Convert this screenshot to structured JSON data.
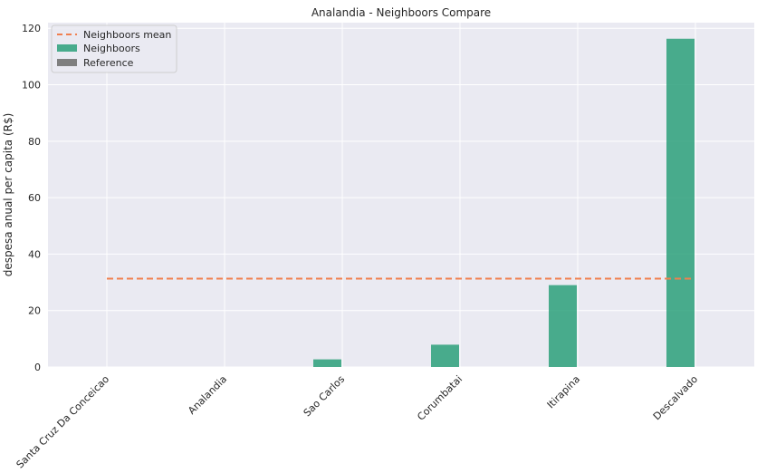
{
  "chart_data": {
    "type": "bar",
    "title": "Analandia - Neighboors Compare",
    "xlabel": "",
    "ylabel": "despesa anual per capita (R$)",
    "categories": [
      "Santa Cruz Da Conceicao",
      "Analandia",
      "Sao Carlos",
      "Corumbatai",
      "Itirapina",
      "Descalvado"
    ],
    "series": [
      {
        "name": "Neighboors",
        "values": [
          0,
          0,
          2.7,
          7.9,
          29.0,
          116.3
        ],
        "color": "#2ca07a"
      },
      {
        "name": "Reference",
        "values": [
          0,
          0,
          0,
          0,
          0,
          0
        ],
        "color": "#7f7f7f"
      }
    ],
    "mean_line": {
      "name": "Neighboors mean",
      "value": 31.3,
      "color": "#f08050"
    },
    "ylim": [
      0,
      122
    ],
    "yticks": [
      0,
      20,
      40,
      60,
      80,
      100,
      120
    ],
    "grid": true,
    "legend_position": "top-left"
  }
}
